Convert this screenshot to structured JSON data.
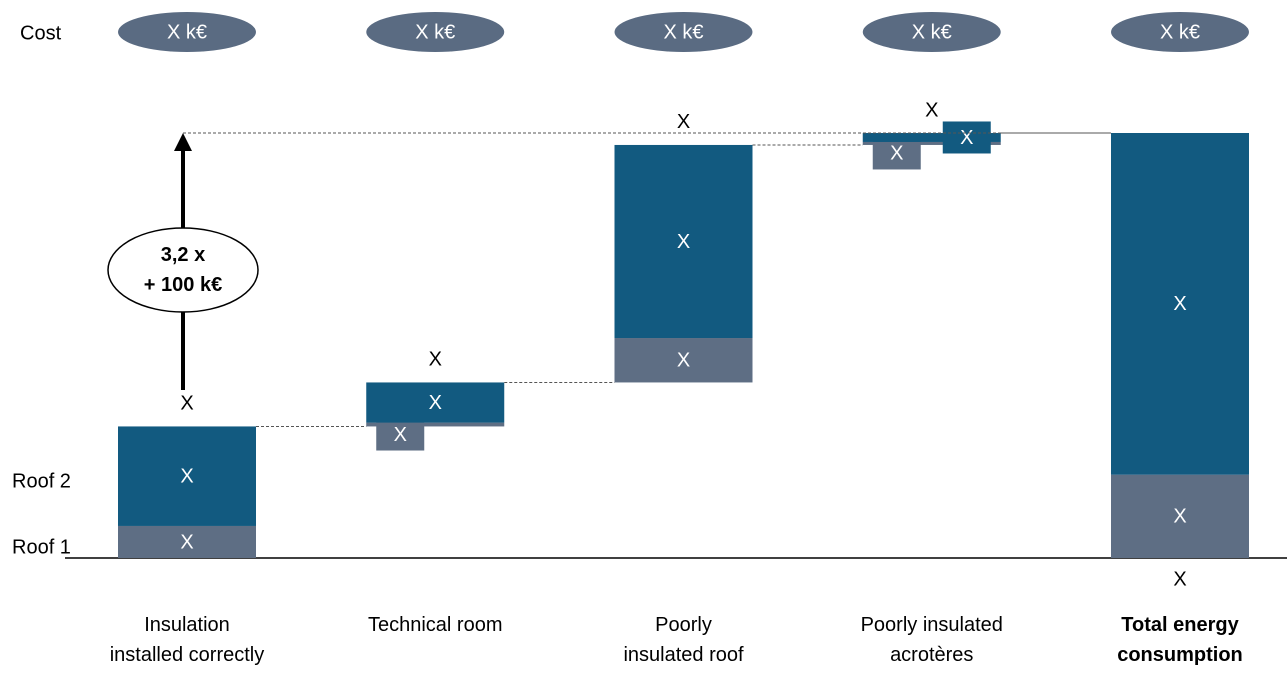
{
  "chart_data": {
    "type": "waterfall",
    "cost_label": "Cost",
    "costs": [
      "X k€",
      "X k€",
      "X k€",
      "X k€",
      "X k€"
    ],
    "categories": [
      "Insulation\ninstalled correctly",
      "Technical room",
      "Poorly\ninsulated roof",
      "Poorly insulated\nacrotères",
      "Total energy\nconsumption"
    ],
    "kinds": [
      "step",
      "step",
      "step",
      "step",
      "total"
    ],
    "step_labels": [
      "X",
      "X",
      "X",
      "X",
      "X"
    ],
    "series": [
      {
        "name": "Roof 1",
        "color": "#5e6e84",
        "values": [
          7.5,
          0.9,
          10.4,
          0.7,
          19.5
        ],
        "value_labels": [
          "X",
          "X",
          "X",
          "X",
          "X"
        ]
      },
      {
        "name": "Roof 2",
        "color": "#125a80",
        "values": [
          23.3,
          9.4,
          45.2,
          2.1,
          80
        ],
        "value_labels": [
          "X",
          "X",
          "X",
          "X",
          "X"
        ]
      }
    ],
    "annotation": "3,2 x\n+ 100 k€"
  }
}
